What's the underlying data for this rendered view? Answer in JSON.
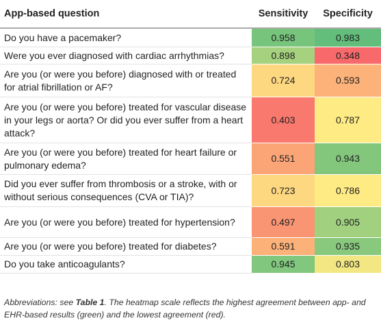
{
  "table": {
    "header": [
      "App-based question",
      "Sensitivity",
      "Specificity"
    ],
    "rows": [
      [
        "Do you have a pacemaker?",
        0.958,
        0.983
      ],
      [
        "Were you ever diagnosed with cardiac arrhythmias?",
        0.898,
        0.348
      ],
      [
        "Are you (or were you before) diagnosed with or treated for atrial fibrillation or AF?",
        0.724,
        0.593
      ],
      [
        "Are you (or were you before) treated for vascular disease in your legs or aorta? Or did you ever suffer from a heart attack?",
        0.403,
        0.787
      ],
      [
        "Are you (or were you before) treated for heart failure or pulmonary edema?",
        0.551,
        0.943
      ],
      [
        "Did you ever suffer from thrombosis or a stroke, with or without serious consequences (CVA or TIA)?",
        0.723,
        0.786
      ],
      [
        "Are you (or were you before) treated for hypertension?",
        0.497,
        0.905
      ],
      [
        "Are you (or were you before) treated for diabetes?",
        0.591,
        0.935
      ],
      [
        "Do you take anticoagulants?",
        0.945,
        0.803
      ]
    ]
  },
  "caption": {
    "before": "Abbreviations: see ",
    "ref": "Table 1",
    "after": ". The heatmap scale reflects the highest agreement between app- and EHR-based results (green) and the lowest agreement (red)."
  }
}
